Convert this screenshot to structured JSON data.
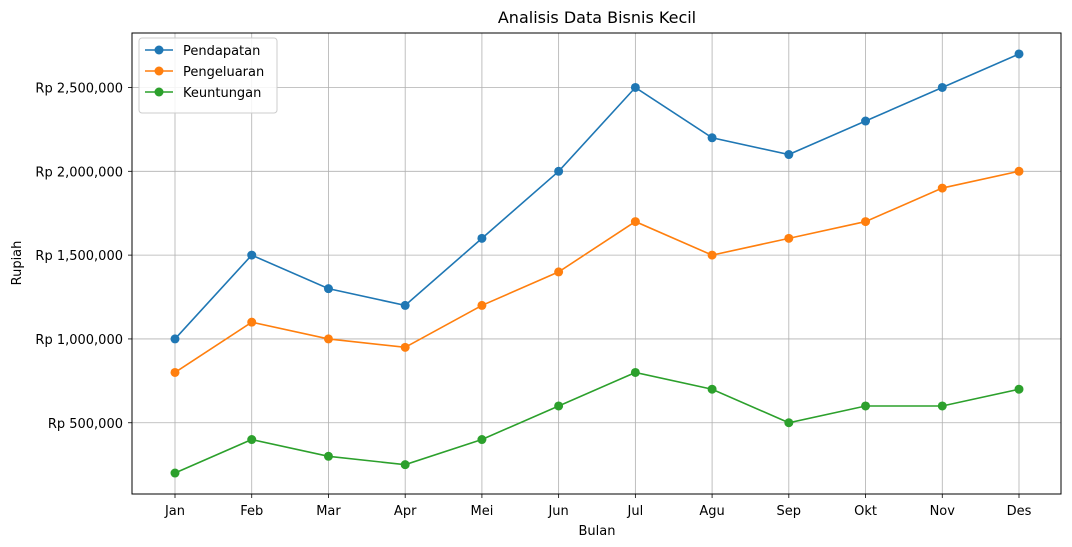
{
  "chart_data": {
    "type": "line",
    "title": "Analisis Data Bisnis Kecil",
    "xlabel": "Bulan",
    "ylabel": "Rupiah",
    "categories": [
      "Jan",
      "Feb",
      "Mar",
      "Apr",
      "Mei",
      "Jun",
      "Jul",
      "Agu",
      "Sep",
      "Okt",
      "Nov",
      "Des"
    ],
    "series": [
      {
        "name": "Pendapatan",
        "color": "#1f77b4",
        "values": [
          1000000,
          1500000,
          1300000,
          1200000,
          1600000,
          2000000,
          2500000,
          2200000,
          2100000,
          2300000,
          2500000,
          2700000
        ]
      },
      {
        "name": "Pengeluaran",
        "color": "#ff7f0e",
        "values": [
          800000,
          1100000,
          1000000,
          950000,
          1200000,
          1400000,
          1700000,
          1500000,
          1600000,
          1700000,
          1900000,
          2000000
        ]
      },
      {
        "name": "Keuntungan",
        "color": "#2ca02c",
        "values": [
          200000,
          400000,
          300000,
          250000,
          400000,
          600000,
          800000,
          700000,
          500000,
          600000,
          600000,
          700000
        ]
      }
    ],
    "yticks": [
      500000,
      1000000,
      1500000,
      2000000,
      2500000
    ],
    "ytick_labels": [
      "Rp 500,000",
      "Rp 1,000,000",
      "Rp 1,500,000",
      "Rp 2,000,000",
      "Rp 2,500,000"
    ],
    "ylim": [
      75000,
      2825000
    ],
    "grid": true,
    "legend_position": "upper-left",
    "marker": "circle"
  }
}
